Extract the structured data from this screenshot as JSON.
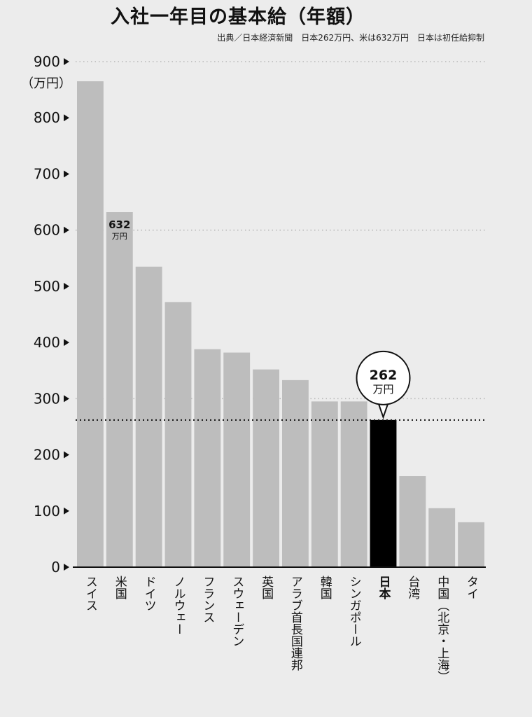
{
  "chart_data": {
    "type": "bar",
    "title": "入社一年目の基本給（年額）",
    "subtitle": "出典／日本経済新聞　日本262万円、米は632万円　日本は初任給抑制",
    "y_unit": "（万円）",
    "ylim": [
      0,
      900
    ],
    "yticks": [
      "0",
      "100",
      "200",
      "300",
      "400",
      "500",
      "600",
      "700",
      "800",
      "900"
    ],
    "categories": [
      "スイス",
      "米国",
      "ドイツ",
      "ノルウェー",
      "フランス",
      "スウェーデン",
      "英国",
      "アラブ首長国連邦",
      "韓国",
      "シンガポール",
      "日本",
      "台湾",
      "中国（北京・上海）",
      "タイ"
    ],
    "values": [
      865,
      632,
      535,
      472,
      388,
      382,
      352,
      333,
      295,
      295,
      262,
      162,
      105,
      80
    ],
    "highlight": "日本",
    "annotations": [
      {
        "category": "米国",
        "value_text": "632",
        "unit_text": "万円"
      },
      {
        "category": "日本",
        "value_text": "262",
        "unit_text": "万円"
      }
    ],
    "reference_line": 262,
    "grid": "dotted",
    "colors": {
      "bar": "#bdbdbd",
      "highlight": "#000000",
      "background": "#ececec"
    }
  }
}
